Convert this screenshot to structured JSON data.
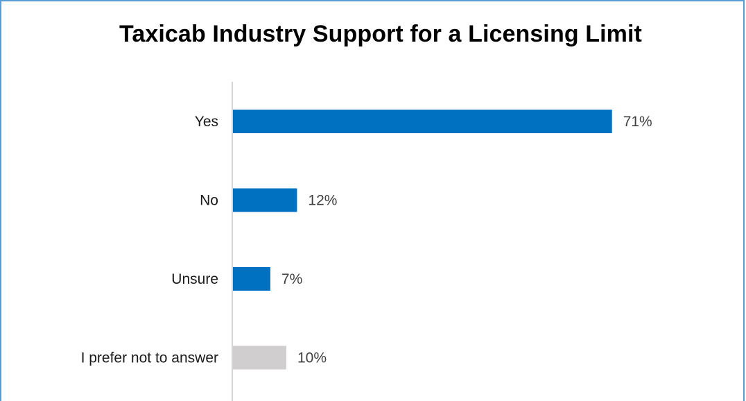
{
  "chart_data": {
    "type": "bar",
    "orientation": "horizontal",
    "title": "Taxicab Industry Support for a Licensing Limit",
    "categories": [
      "Yes",
      "No",
      "Unsure",
      "I prefer not to answer"
    ],
    "values": [
      71,
      12,
      7,
      10
    ],
    "value_labels": [
      "71%",
      "12%",
      "7%",
      "10%"
    ],
    "unit": "%",
    "bar_colors": [
      "#0070c0",
      "#0070c0",
      "#0070c0",
      "#d0cece"
    ],
    "xlim": [
      0,
      100
    ],
    "grid": false,
    "legend": "none"
  }
}
